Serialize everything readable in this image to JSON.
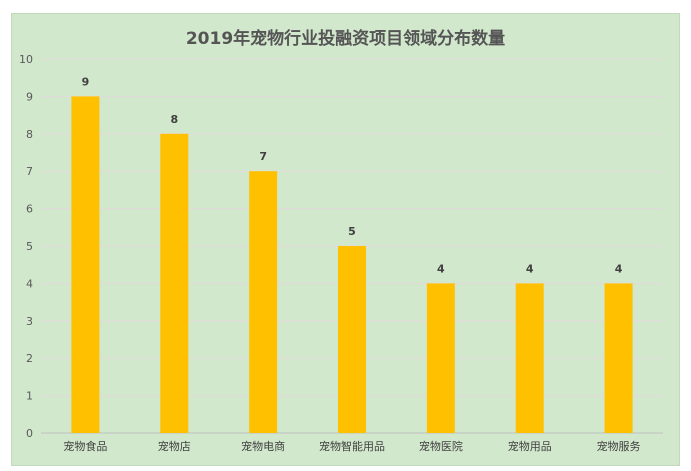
{
  "chart_data": {
    "type": "bar",
    "title": "2019年宠物行业投融资项目领域分布数量",
    "xlabel": "",
    "ylabel": "",
    "categories": [
      "宠物食品",
      "宠物店",
      "宠物电商",
      "宠物智能用品",
      "宠物医院",
      "宠物用品",
      "宠物服务"
    ],
    "values": [
      9,
      8,
      7,
      5,
      4,
      4,
      4
    ],
    "ylim": [
      0,
      10
    ],
    "yticks": [
      0,
      1,
      2,
      3,
      4,
      5,
      6,
      7,
      8,
      9,
      10
    ],
    "grid": true,
    "legend": "none",
    "colors": {
      "background": "#d2e8cd",
      "bar": "#ffc000",
      "gridline": "#e3d9dc",
      "text": "#595959"
    }
  }
}
